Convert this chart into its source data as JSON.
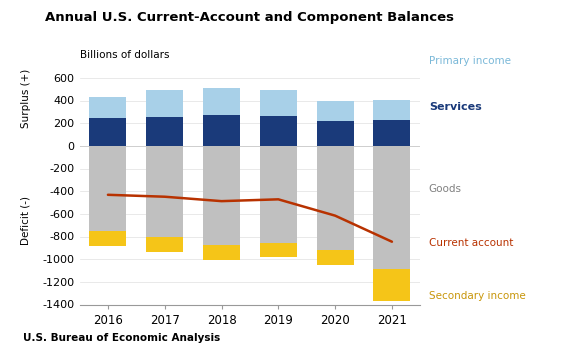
{
  "title": "Annual U.S. Current-Account and Component Balances",
  "ylabel_top": "Billions of dollars",
  "ylabel_left_top": "Surplus (+)",
  "ylabel_left_bottom": "Deficit (-)",
  "source": "U.S. Bureau of Economic Analysis",
  "years": [
    2016,
    2017,
    2018,
    2019,
    2020,
    2021
  ],
  "goods": [
    -752,
    -807,
    -879,
    -854,
    -922,
    -1086
  ],
  "services": [
    248,
    255,
    270,
    265,
    218,
    231
  ],
  "primary_income": [
    185,
    238,
    242,
    230,
    177,
    175
  ],
  "secondary_income": [
    -130,
    -128,
    -130,
    -131,
    -131,
    -281
  ],
  "current_account": [
    -432,
    -449,
    -488,
    -472,
    -616,
    -846
  ],
  "color_goods": "#c0c0c0",
  "color_services": "#1a3a7a",
  "color_primary": "#a8d0e8",
  "color_secondary": "#f5c518",
  "color_current_account": "#b83200",
  "ylim": [
    -1400,
    700
  ],
  "yticks": [
    -1400,
    -1200,
    -1000,
    -800,
    -600,
    -400,
    -200,
    0,
    200,
    400,
    600
  ]
}
